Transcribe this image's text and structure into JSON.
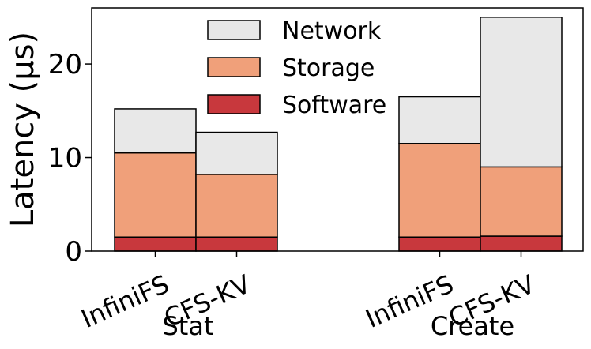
{
  "chart_data": {
    "type": "bar",
    "stacked": true,
    "ylabel": "Latency (μs)",
    "ylim": [
      0,
      26
    ],
    "yticks": [
      0,
      10,
      20
    ],
    "grid": false,
    "legend_position": "top-center",
    "groups": [
      {
        "label": "Stat",
        "categories": [
          "InfiniFS",
          "CFS-KV"
        ]
      },
      {
        "label": "Create",
        "categories": [
          "InfiniFS",
          "CFS-KV"
        ]
      }
    ],
    "bars": [
      {
        "group": "Stat",
        "category": "InfiniFS",
        "Software": 1.5,
        "Storage": 9.0,
        "Network": 4.7
      },
      {
        "group": "Stat",
        "category": "CFS-KV",
        "Software": 1.5,
        "Storage": 6.7,
        "Network": 4.5
      },
      {
        "group": "Create",
        "category": "InfiniFS",
        "Software": 1.5,
        "Storage": 10.0,
        "Network": 5.0
      },
      {
        "group": "Create",
        "category": "CFS-KV",
        "Software": 1.6,
        "Storage": 7.4,
        "Network": 16.0
      }
    ],
    "series": [
      {
        "name": "Software",
        "color": "#c8383d"
      },
      {
        "name": "Storage",
        "color": "#f0a07a"
      },
      {
        "name": "Network",
        "color": "#e8e8e8"
      }
    ],
    "legend_order": [
      "Network",
      "Storage",
      "Software"
    ]
  }
}
